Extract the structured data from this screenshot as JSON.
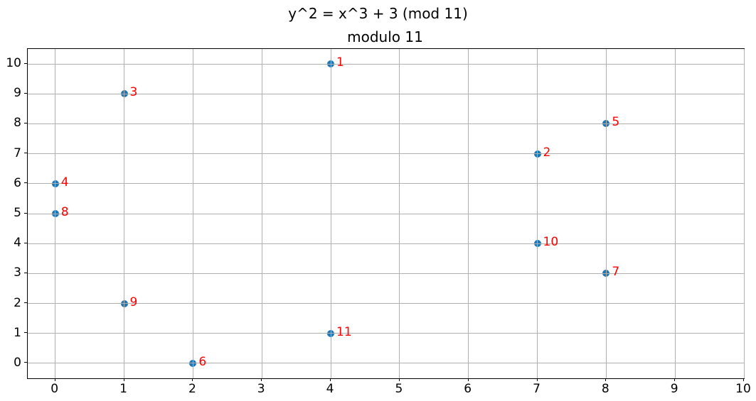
{
  "figure": {
    "suptitle": "y^2 = x^3 + 3 (mod 11)",
    "axes_title": "modulo 11"
  },
  "chart_data": {
    "type": "scatter",
    "suptitle": "y^2 = x^3 + 3 (mod 11)",
    "title": "modulo 11",
    "xlabel": "",
    "ylabel": "",
    "xlim": [
      -0.4,
      10.0
    ],
    "ylim": [
      -0.5,
      10.5
    ],
    "xticks": [
      0,
      1,
      2,
      3,
      4,
      5,
      6,
      7,
      8,
      9,
      10
    ],
    "yticks": [
      0,
      1,
      2,
      3,
      4,
      5,
      6,
      7,
      8,
      9,
      10
    ],
    "grid": true,
    "legend": false,
    "marker_color": "#1f77b4",
    "label_color": "#ff0000",
    "grid_color": "#b0b0b0",
    "points": [
      {
        "x": 4,
        "y": 10,
        "label": "1"
      },
      {
        "x": 7,
        "y": 7,
        "label": "2"
      },
      {
        "x": 1,
        "y": 9,
        "label": "3"
      },
      {
        "x": 0,
        "y": 6,
        "label": "4"
      },
      {
        "x": 8,
        "y": 8,
        "label": "5"
      },
      {
        "x": 2,
        "y": 0,
        "label": "6"
      },
      {
        "x": 8,
        "y": 3,
        "label": "7"
      },
      {
        "x": 0,
        "y": 5,
        "label": "8"
      },
      {
        "x": 1,
        "y": 2,
        "label": "9"
      },
      {
        "x": 7,
        "y": 4,
        "label": "10"
      },
      {
        "x": 4,
        "y": 1,
        "label": "11"
      }
    ]
  }
}
